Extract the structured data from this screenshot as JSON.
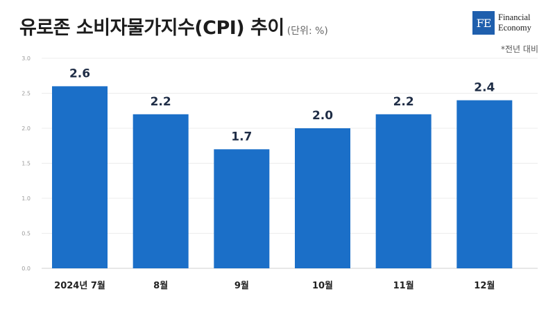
{
  "header": {
    "title": "유로존 소비자물가지수(CPI) 추이",
    "unit": "(단위: %)",
    "note": "*전년 대비"
  },
  "logo": {
    "mark": "FE",
    "line1": "Financial",
    "line2": "Economy",
    "color": "#1f5fad"
  },
  "chart_data": {
    "type": "bar",
    "categories": [
      "2024년 7월",
      "8월",
      "9월",
      "10월",
      "11월",
      "12월"
    ],
    "values": [
      2.6,
      2.2,
      1.7,
      2.0,
      2.2,
      2.4
    ],
    "value_labels": [
      "2.6",
      "2.2",
      "1.7",
      "2.0",
      "2.2",
      "2.4"
    ],
    "ylim": [
      0,
      3.0
    ],
    "yticks": [
      "0.0",
      "0.5",
      "1.0",
      "1.5",
      "2.0",
      "2.5",
      "3.0"
    ],
    "grid": true,
    "bar_color": "#1b6fc8"
  }
}
